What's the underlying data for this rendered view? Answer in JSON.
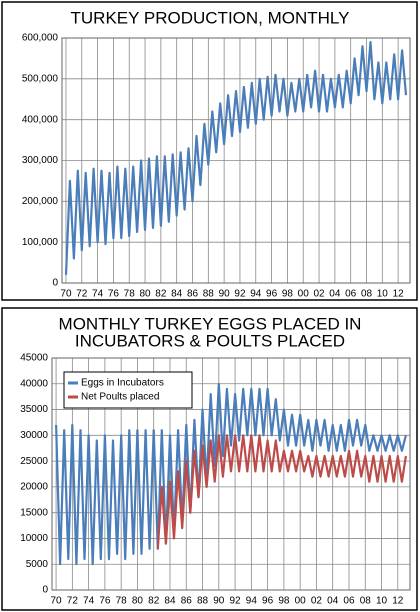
{
  "chart_data": [
    {
      "type": "line",
      "title": [
        "TURKEY PRODUCTION, MONTHLY"
      ],
      "x": [
        1970,
        1970.5,
        1971,
        1971.5,
        1972,
        1972.5,
        1973,
        1973.5,
        1974,
        1974.5,
        1975,
        1975.5,
        1976,
        1976.5,
        1977,
        1977.5,
        1978,
        1978.5,
        1979,
        1979.5,
        1980,
        1980.5,
        1981,
        1981.5,
        1982,
        1982.5,
        1983,
        1983.5,
        1984,
        1984.5,
        1985,
        1985.5,
        1986,
        1986.5,
        1987,
        1987.5,
        1988,
        1988.5,
        1989,
        1989.5,
        1990,
        1990.5,
        1991,
        1991.5,
        1992,
        1992.5,
        1993,
        1993.5,
        1994,
        1994.5,
        1995,
        1995.5,
        1996,
        1996.5,
        1997,
        1997.5,
        1998,
        1998.5,
        1999,
        1999.5,
        2000,
        2000.5,
        2001,
        2001.5,
        2002,
        2002.5,
        2003,
        2003.5,
        2004,
        2004.5,
        2005,
        2005.5,
        2006,
        2006.5,
        2007,
        2007.5,
        2008,
        2008.5,
        2009,
        2009.5,
        2010,
        2010.5,
        2011,
        2011.5,
        2012,
        2012.5,
        2013
      ],
      "series": [
        {
          "color": "#4a7ebb",
          "values": [
            20000,
            250000,
            60000,
            275000,
            80000,
            270000,
            90000,
            280000,
            100000,
            275000,
            95000,
            270000,
            110000,
            285000,
            110000,
            280000,
            115000,
            285000,
            125000,
            300000,
            130000,
            305000,
            135000,
            310000,
            140000,
            310000,
            150000,
            315000,
            165000,
            320000,
            180000,
            330000,
            200000,
            360000,
            240000,
            390000,
            290000,
            420000,
            320000,
            440000,
            340000,
            460000,
            360000,
            470000,
            370000,
            480000,
            380000,
            490000,
            390000,
            500000,
            400000,
            505000,
            410000,
            510000,
            420000,
            500000,
            410000,
            490000,
            420000,
            500000,
            420000,
            510000,
            430000,
            520000,
            420000,
            510000,
            420000,
            500000,
            430000,
            510000,
            430000,
            520000,
            440000,
            550000,
            460000,
            580000,
            470000,
            590000,
            450000,
            540000,
            440000,
            540000,
            450000,
            560000,
            450000,
            570000,
            460000
          ]
        }
      ],
      "xlim": [
        1969.5,
        2013.5
      ],
      "xticks": [
        {
          "value": 1970,
          "label": "70"
        },
        {
          "value": 1972,
          "label": "72"
        },
        {
          "value": 1974,
          "label": "74"
        },
        {
          "value": 1976,
          "label": "76"
        },
        {
          "value": 1978,
          "label": "78"
        },
        {
          "value": 1980,
          "label": "80"
        },
        {
          "value": 1982,
          "label": "82"
        },
        {
          "value": 1984,
          "label": "84"
        },
        {
          "value": 1986,
          "label": "86"
        },
        {
          "value": 1988,
          "label": "88"
        },
        {
          "value": 1990,
          "label": "90"
        },
        {
          "value": 1992,
          "label": "92"
        },
        {
          "value": 1994,
          "label": "94"
        },
        {
          "value": 1996,
          "label": "96"
        },
        {
          "value": 1998,
          "label": "98"
        },
        {
          "value": 2000,
          "label": "00"
        },
        {
          "value": 2002,
          "label": "02"
        },
        {
          "value": 2004,
          "label": "04"
        },
        {
          "value": 2006,
          "label": "06"
        },
        {
          "value": 2008,
          "label": "08"
        },
        {
          "value": 2010,
          "label": "10"
        },
        {
          "value": 2012,
          "label": "12"
        }
      ],
      "ylim": [
        0,
        600000
      ],
      "yticks": [
        0,
        {
          "value": 100000,
          "label": "100,000"
        },
        {
          "value": 200000,
          "label": "200,000"
        },
        {
          "value": 300000,
          "label": "300,000"
        },
        {
          "value": 400000,
          "label": "400,000"
        },
        {
          "value": 500000,
          "label": "500,000"
        },
        {
          "value": 600000,
          "label": "600,000"
        }
      ],
      "grid": true
    },
    {
      "type": "line",
      "title": [
        "MONTHLY TURKEY EGGS PLACED IN",
        "INCUBATORS & POULTS PLACED"
      ],
      "x": [
        1970,
        1970.5,
        1971,
        1971.5,
        1972,
        1972.5,
        1973,
        1973.5,
        1974,
        1974.5,
        1975,
        1975.5,
        1976,
        1976.5,
        1977,
        1977.5,
        1978,
        1978.5,
        1979,
        1979.5,
        1980,
        1980.5,
        1981,
        1981.5,
        1982,
        1982.5,
        1983,
        1983.5,
        1984,
        1984.5,
        1985,
        1985.5,
        1986,
        1986.5,
        1987,
        1987.5,
        1988,
        1988.5,
        1989,
        1989.5,
        1990,
        1990.5,
        1991,
        1991.5,
        1992,
        1992.5,
        1993,
        1993.5,
        1994,
        1994.5,
        1995,
        1995.5,
        1996,
        1996.5,
        1997,
        1997.5,
        1998,
        1998.5,
        1999,
        1999.5,
        2000,
        2000.5,
        2001,
        2001.5,
        2002,
        2002.5,
        2003,
        2003.5,
        2004,
        2004.5,
        2005,
        2005.5,
        2006,
        2006.5,
        2007,
        2007.5,
        2008,
        2008.5,
        2009,
        2009.5,
        2010,
        2010.5,
        2011,
        2011.5,
        2012,
        2012.5,
        2013
      ],
      "series": [
        {
          "name": "Eggs in Incubators",
          "color": "#4a7ebb",
          "values": [
            32000,
            5000,
            31000,
            6000,
            32000,
            5000,
            31000,
            6000,
            30000,
            5000,
            29000,
            6000,
            30000,
            6000,
            29000,
            7000,
            30000,
            6000,
            31000,
            7000,
            31000,
            7000,
            31000,
            8000,
            31000,
            8000,
            31000,
            9000,
            30000,
            11000,
            31000,
            13000,
            32000,
            15000,
            33000,
            18000,
            35000,
            21000,
            38000,
            24000,
            40000,
            26000,
            39000,
            28000,
            38000,
            29000,
            39000,
            30000,
            39000,
            30000,
            39000,
            30000,
            39000,
            30000,
            37000,
            29000,
            35000,
            28000,
            34000,
            28000,
            34000,
            28000,
            33000,
            27000,
            33000,
            28000,
            33000,
            27000,
            32000,
            27000,
            32000,
            27000,
            33000,
            28000,
            33000,
            28000,
            32000,
            27000,
            30000,
            27000,
            30000,
            27000,
            30000,
            27000,
            30000,
            27000,
            30000
          ]
        },
        {
          "name": "Net Poults placed",
          "color": "#be4b48",
          "values": [
            null,
            null,
            null,
            null,
            null,
            null,
            null,
            null,
            null,
            null,
            null,
            null,
            null,
            null,
            null,
            null,
            null,
            null,
            null,
            null,
            null,
            null,
            null,
            null,
            null,
            8000,
            20000,
            9000,
            21000,
            10000,
            23000,
            12000,
            25000,
            15000,
            27000,
            18000,
            28000,
            20000,
            29000,
            21000,
            30000,
            22000,
            30000,
            23000,
            30000,
            23000,
            30000,
            23000,
            30000,
            23000,
            30000,
            23000,
            29000,
            23000,
            29000,
            23000,
            27000,
            23000,
            27000,
            23000,
            27000,
            23000,
            26000,
            22000,
            26000,
            22000,
            26000,
            22000,
            26000,
            22000,
            26000,
            22000,
            27000,
            22000,
            27000,
            22000,
            26000,
            21000,
            26000,
            21000,
            26000,
            21000,
            26000,
            21000,
            26000,
            21000,
            26000
          ]
        }
      ],
      "xlim": [
        1969.5,
        2013.5
      ],
      "xticks": [
        {
          "value": 1970,
          "label": "70"
        },
        {
          "value": 1972,
          "label": "72"
        },
        {
          "value": 1974,
          "label": "74"
        },
        {
          "value": 1976,
          "label": "76"
        },
        {
          "value": 1978,
          "label": "78"
        },
        {
          "value": 1980,
          "label": "80"
        },
        {
          "value": 1982,
          "label": "82"
        },
        {
          "value": 1984,
          "label": "84"
        },
        {
          "value": 1986,
          "label": "86"
        },
        {
          "value": 1988,
          "label": "88"
        },
        {
          "value": 1990,
          "label": "90"
        },
        {
          "value": 1992,
          "label": "92"
        },
        {
          "value": 1994,
          "label": "94"
        },
        {
          "value": 1996,
          "label": "96"
        },
        {
          "value": 1998,
          "label": "98"
        },
        {
          "value": 2000,
          "label": "00"
        },
        {
          "value": 2002,
          "label": "02"
        },
        {
          "value": 2004,
          "label": "04"
        },
        {
          "value": 2006,
          "label": "06"
        },
        {
          "value": 2008,
          "label": "08"
        },
        {
          "value": 2010,
          "label": "10"
        },
        {
          "value": 2012,
          "label": "12"
        }
      ],
      "ylim": [
        0,
        45000
      ],
      "yticks": [
        0,
        5000,
        10000,
        15000,
        20000,
        25000,
        30000,
        35000,
        40000,
        45000
      ],
      "grid": true,
      "legend": "upper left"
    }
  ]
}
